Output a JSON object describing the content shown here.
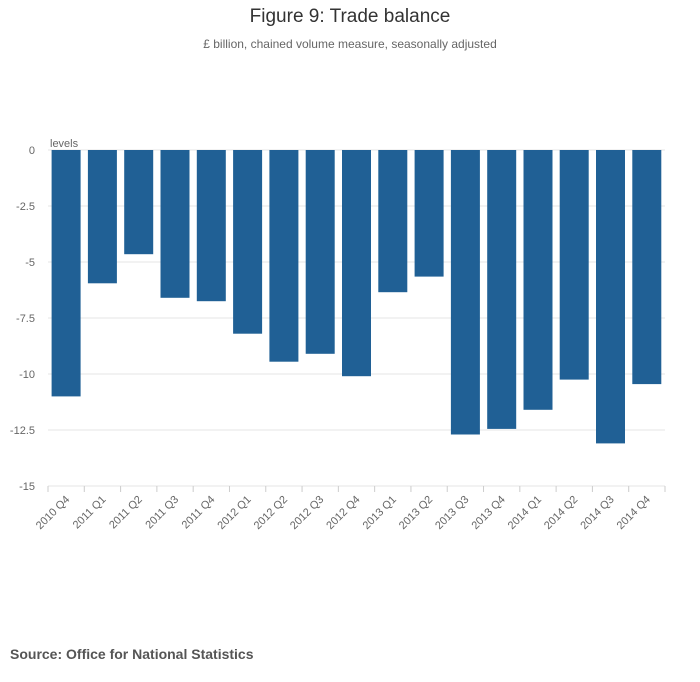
{
  "title": "Figure 9: Trade balance",
  "subtitle": "£ billion, chained volume measure, seasonally adjusted",
  "source": "Source: Office for National Statistics",
  "colors": {
    "bar": "#206095",
    "grid": "#e6e6e6",
    "text": "#666666"
  },
  "chart_data": {
    "type": "bar",
    "title": "Figure 9: Trade balance",
    "subtitle": "£ billion, chained volume measure, seasonally adjusted",
    "ylabel": "levels",
    "xlabel": "",
    "ylim": [
      -15,
      0
    ],
    "yticks": [
      0,
      -2.5,
      -5,
      -7.5,
      -10,
      -12.5,
      -15
    ],
    "ytick_labels": [
      "0",
      "-2.5",
      "-5",
      "-7.5",
      "-10",
      "-12.5",
      "-15"
    ],
    "grid": true,
    "categories": [
      "2010 Q4",
      "2011 Q1",
      "2011 Q2",
      "2011 Q3",
      "2011 Q4",
      "2012 Q1",
      "2012 Q2",
      "2012 Q3",
      "2012 Q4",
      "2013 Q1",
      "2013 Q2",
      "2013 Q3",
      "2013 Q4",
      "2014 Q1",
      "2014 Q2",
      "2014 Q3",
      "2014 Q4"
    ],
    "values": [
      -11.0,
      -5.95,
      -4.65,
      -6.6,
      -6.75,
      -8.2,
      -9.45,
      -9.1,
      -10.1,
      -6.35,
      -5.65,
      -12.7,
      -12.45,
      -11.6,
      -10.25,
      -13.1,
      -10.45
    ]
  }
}
